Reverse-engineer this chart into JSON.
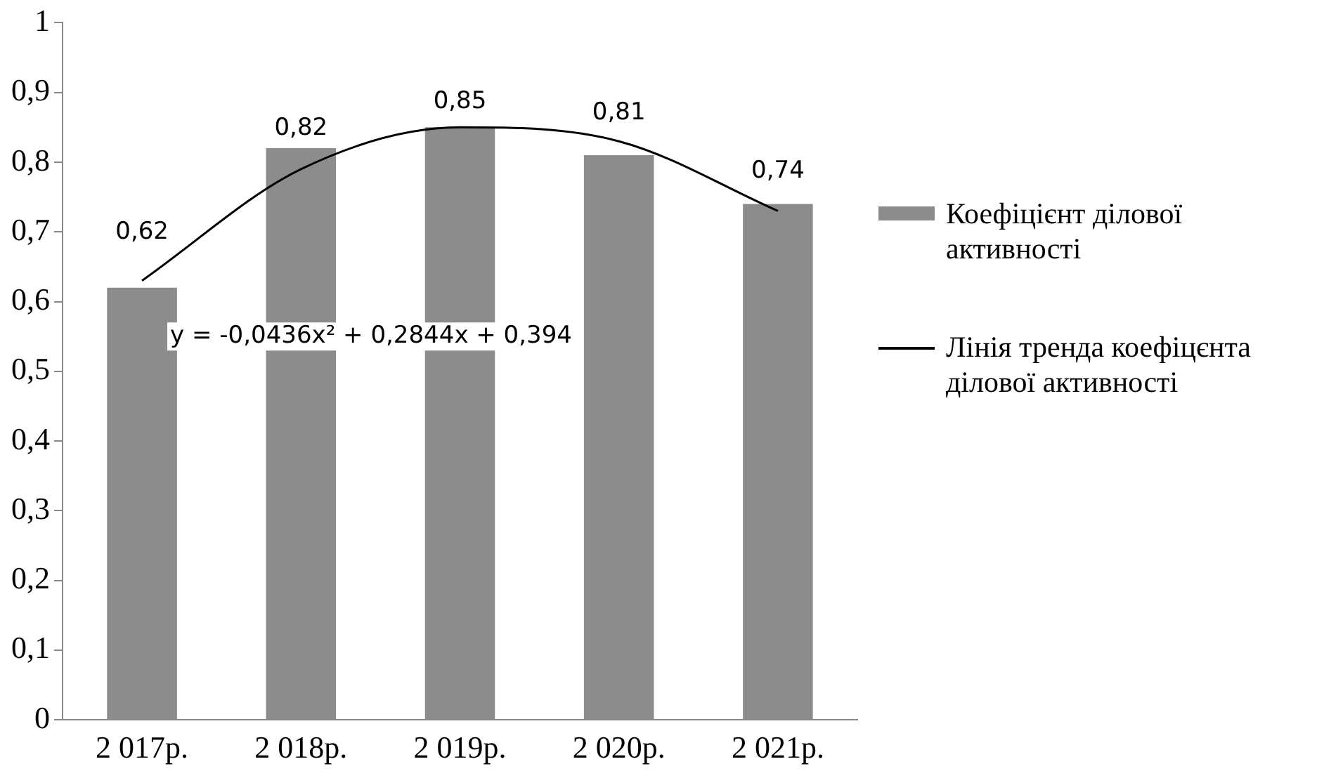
{
  "chart_data": {
    "type": "bar",
    "categories": [
      "2 017р.",
      "2 018р.",
      "2 019р.",
      "2 020р.",
      "2 021р."
    ],
    "series": [
      {
        "name": "Коефіцієнт ділової активності",
        "color": "#8c8c8c",
        "values": [
          0.62,
          0.82,
          0.85,
          0.81,
          0.74
        ],
        "value_labels": [
          "0,62",
          "0,82",
          "0,85",
          "0,81",
          "0,74"
        ]
      },
      {
        "name": "Лінія тренда коефіцєнта ділової активності",
        "type": "line",
        "color": "#000000",
        "values": [
          0.63,
          0.79,
          0.85,
          0.83,
          0.73
        ],
        "marker": "none"
      }
    ],
    "ylim": [
      0,
      1
    ],
    "yticks": [
      {
        "value": 0,
        "label": "0"
      },
      {
        "value": 0.1,
        "label": "0,1"
      },
      {
        "value": 0.2,
        "label": "0,2"
      },
      {
        "value": 0.3,
        "label": "0,3"
      },
      {
        "value": 0.4,
        "label": "0,4"
      },
      {
        "value": 0.5,
        "label": "0,5"
      },
      {
        "value": 0.6,
        "label": "0,6"
      },
      {
        "value": 0.7,
        "label": "0,7"
      },
      {
        "value": 0.8,
        "label": "0,8"
      },
      {
        "value": 0.9,
        "label": "0,9"
      },
      {
        "value": 1,
        "label": "1"
      }
    ],
    "grid": false,
    "legend": "right",
    "annotations": [
      "y = -0,0436x² + 0,2844x + 0,394"
    ]
  }
}
